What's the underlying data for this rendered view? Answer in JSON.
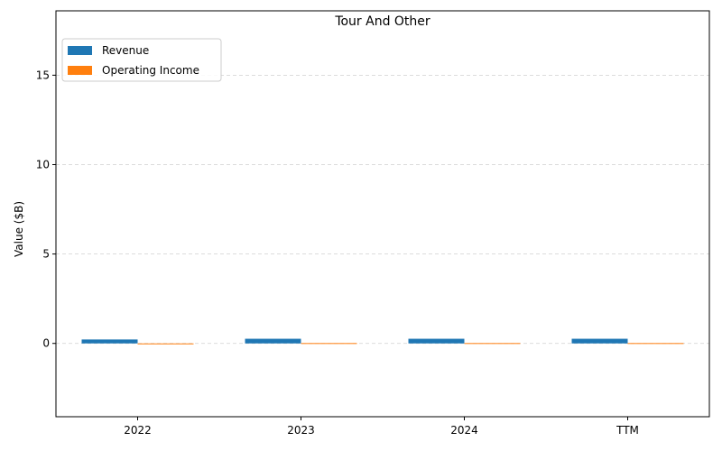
{
  "chart_data": {
    "type": "bar",
    "title": "Tour And Other",
    "xlabel": "",
    "ylabel": "Value ($B)",
    "categories": [
      "2022",
      "2023",
      "2024",
      "TTM"
    ],
    "series": [
      {
        "name": "Revenue",
        "color": "#1f77b4",
        "values": [
          0.22,
          0.26,
          0.26,
          0.26
        ]
      },
      {
        "name": "Operating Income",
        "color": "#ff7f0e",
        "values": [
          -0.04,
          0.02,
          0.02,
          0.02
        ]
      }
    ],
    "ylim": [
      -4.1,
      18.6
    ],
    "yticks": [
      0,
      5,
      10,
      15
    ],
    "grid": "y-dashed",
    "legend_position": "top-left"
  }
}
